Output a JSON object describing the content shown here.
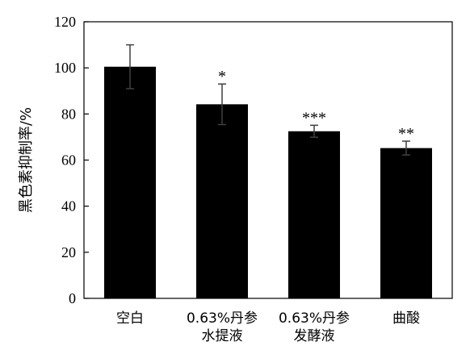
{
  "chart_data": {
    "type": "bar",
    "categories": [
      [
        "空白"
      ],
      [
        "0.63%丹参",
        "水提液"
      ],
      [
        "0.63%丹参",
        "发酵液"
      ],
      [
        "曲酸"
      ]
    ],
    "values": [
      100.5,
      84.2,
      72.5,
      65.2
    ],
    "error": [
      9.5,
      8.8,
      2.6,
      3.0
    ],
    "significance": [
      "",
      "*",
      "***",
      "**"
    ],
    "ylabel": "黑色素抑制率/%",
    "xlabel": "",
    "ylim": [
      0,
      120
    ],
    "yticks": [
      0,
      20,
      40,
      60,
      80,
      100,
      120
    ],
    "grid": false,
    "colors": {
      "bar": "#000000",
      "axis": "#000000",
      "error": "#404040"
    }
  }
}
